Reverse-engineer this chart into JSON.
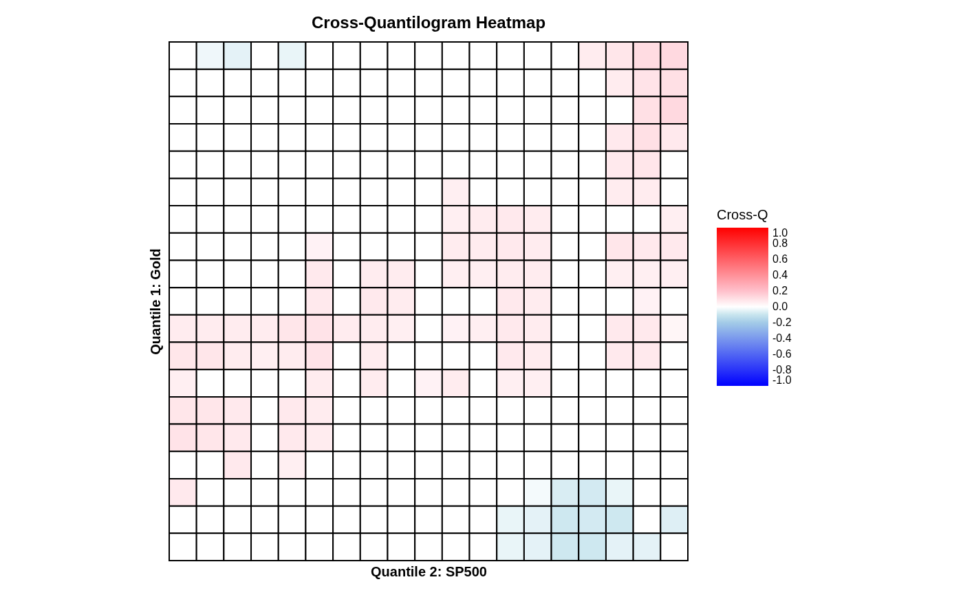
{
  "chart_data": {
    "type": "heatmap",
    "title": "Cross-Quantilogram Heatmap",
    "xlabel": "Quantile 2: SP500",
    "ylabel": "Quantile 1: Gold",
    "legend_title": "Cross-Q",
    "categories": [
      null,
      null,
      null,
      null,
      null,
      null,
      null,
      null,
      null,
      null,
      null,
      null,
      null,
      null,
      null,
      null,
      null,
      null,
      null
    ],
    "y_categories": [
      null,
      null,
      null,
      null,
      null,
      null,
      null,
      null,
      null,
      null,
      null,
      null,
      null,
      null,
      null,
      null,
      null,
      null,
      null
    ],
    "cells": [
      [
        0,
        -0.03,
        -0.05,
        0,
        -0.04,
        0,
        0,
        0,
        0,
        0,
        0,
        0,
        0,
        0,
        0,
        0.06,
        0.08,
        0.11,
        0.12
      ],
      [
        0,
        0,
        0,
        0,
        0,
        0,
        0,
        0,
        0,
        0,
        0,
        0,
        0,
        0,
        0,
        0,
        0.06,
        0.09,
        0.1
      ],
      [
        0,
        0,
        0,
        0,
        0,
        0,
        0,
        0,
        0,
        0,
        0,
        0,
        0,
        0,
        0,
        0,
        0,
        0.1,
        0.12
      ],
      [
        0,
        0,
        0,
        0,
        0,
        0,
        0,
        0,
        0,
        0,
        0,
        0,
        0,
        0,
        0,
        0,
        0.07,
        0.1,
        0.07
      ],
      [
        0,
        0,
        0,
        0,
        0,
        0,
        0,
        0,
        0,
        0,
        0,
        0,
        0,
        0,
        0,
        0,
        0.07,
        0.08,
        0
      ],
      [
        0,
        0,
        0,
        0,
        0,
        0,
        0,
        0,
        0,
        0,
        0.05,
        0,
        0,
        0,
        0,
        0,
        0.06,
        0.06,
        0
      ],
      [
        0,
        0,
        0,
        0,
        0,
        0,
        0,
        0,
        0,
        0,
        0.05,
        0.06,
        0.07,
        0.06,
        0,
        0,
        0,
        0,
        0.05
      ],
      [
        0,
        0,
        0,
        0,
        0,
        0.04,
        0,
        0,
        0,
        0,
        0.06,
        0.06,
        0.07,
        0.06,
        0,
        0,
        0.08,
        0.07,
        0.07
      ],
      [
        0,
        0,
        0,
        0,
        0,
        0.07,
        0,
        0.06,
        0.06,
        0,
        0.05,
        0.05,
        0.06,
        0.06,
        0,
        0,
        0.05,
        0.05,
        0.05
      ],
      [
        0,
        0,
        0,
        0,
        0,
        0.07,
        0,
        0.07,
        0.06,
        0,
        0,
        0,
        0.07,
        0.06,
        0,
        0,
        0,
        0.04,
        0
      ],
      [
        0.06,
        0.06,
        0.06,
        0.06,
        0.08,
        0.09,
        0.06,
        0.06,
        0.05,
        0,
        0.04,
        0.05,
        0.07,
        0.06,
        0,
        0,
        0.07,
        0.07,
        0.03
      ],
      [
        0.08,
        0.08,
        0.06,
        0.05,
        0.06,
        0.09,
        0,
        0.06,
        0,
        0,
        0,
        0,
        0.07,
        0.06,
        0,
        0,
        0.07,
        0.07,
        0
      ],
      [
        0.05,
        0,
        0,
        0,
        0,
        0.06,
        0,
        0.06,
        0,
        0.04,
        0.06,
        0,
        0.05,
        0.05,
        0,
        0,
        0,
        0,
        0
      ],
      [
        0.08,
        0.08,
        0.07,
        0,
        0.07,
        0.06,
        0,
        0,
        0,
        0,
        0,
        0,
        0,
        0,
        0,
        0,
        0,
        0,
        0
      ],
      [
        0.09,
        0.08,
        0.07,
        0,
        0.07,
        0.06,
        0,
        0,
        0,
        0,
        0,
        0,
        0,
        0,
        0,
        0,
        0,
        0,
        0
      ],
      [
        0,
        0,
        0.07,
        0,
        0.05,
        0,
        0,
        0,
        0,
        0,
        0,
        0,
        0,
        0,
        0,
        0,
        0,
        0,
        0
      ],
      [
        0.07,
        0,
        0,
        0,
        0,
        0,
        0,
        0,
        0,
        0,
        0,
        0,
        0,
        -0.02,
        -0.07,
        -0.08,
        -0.04,
        0,
        0
      ],
      [
        0,
        0,
        0,
        0,
        0,
        0,
        0,
        0,
        0,
        0,
        0,
        0,
        -0.04,
        -0.05,
        -0.09,
        -0.08,
        -0.09,
        0,
        -0.06
      ],
      [
        0,
        0,
        0,
        0,
        0,
        0,
        0,
        0,
        0,
        0,
        0,
        0,
        -0.04,
        -0.05,
        -0.09,
        -0.09,
        -0.05,
        -0.05,
        0
      ]
    ],
    "clim": [
      -1,
      1
    ],
    "cticks": [
      {
        "value": -1,
        "label": "-1.0"
      },
      -0.8,
      -0.6,
      -0.4,
      -0.2,
      {
        "value": 0,
        "label": "0.0"
      },
      0.2,
      0.4,
      0.6,
      0.8,
      {
        "value": 1,
        "label": "1.0"
      }
    ],
    "tick_labels": false
  }
}
